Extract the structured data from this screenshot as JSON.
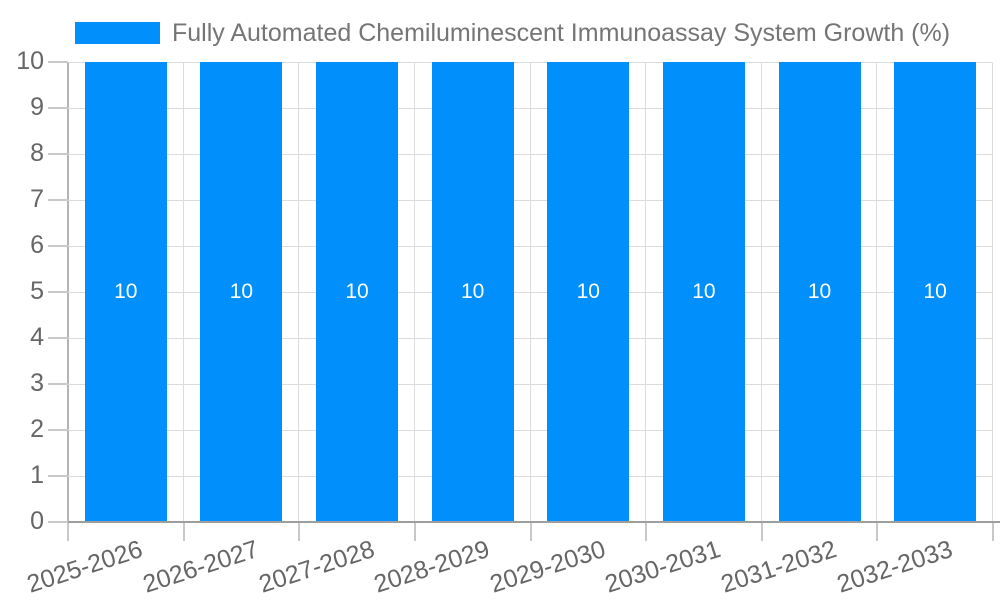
{
  "legend": {
    "label": "Fully Automated Chemiluminescent Immunoassay System Growth (%)"
  },
  "chart_data": {
    "type": "bar",
    "title": "Fully Automated Chemiluminescent Immunoassay System Growth (%)",
    "categories": [
      "2025-2026",
      "2026-2027",
      "2027-2028",
      "2028-2029",
      "2029-2030",
      "2030-2031",
      "2031-2032",
      "2032-2033"
    ],
    "values": [
      10,
      10,
      10,
      10,
      10,
      10,
      10,
      10
    ],
    "data_labels": [
      "10",
      "10",
      "10",
      "10",
      "10",
      "10",
      "10",
      "10"
    ],
    "xlabel": "",
    "ylabel": "",
    "ylim": [
      0,
      10
    ],
    "y_ticks": [
      "0",
      "1",
      "2",
      "3",
      "4",
      "5",
      "6",
      "7",
      "8",
      "9",
      "10"
    ],
    "grid": true,
    "legend_position": "top",
    "x_tick_rotation_deg": -18,
    "colors": {
      "bar": "#008FFB",
      "grid": "#dcdcdc",
      "x_axis_line": "#9e9e9e",
      "y_axis_line": "#b3b3b3",
      "tick": "#c9c9c9",
      "tick_label_text": "#666666",
      "legend_text": "#757575",
      "data_label_text": "#ffffff"
    }
  }
}
